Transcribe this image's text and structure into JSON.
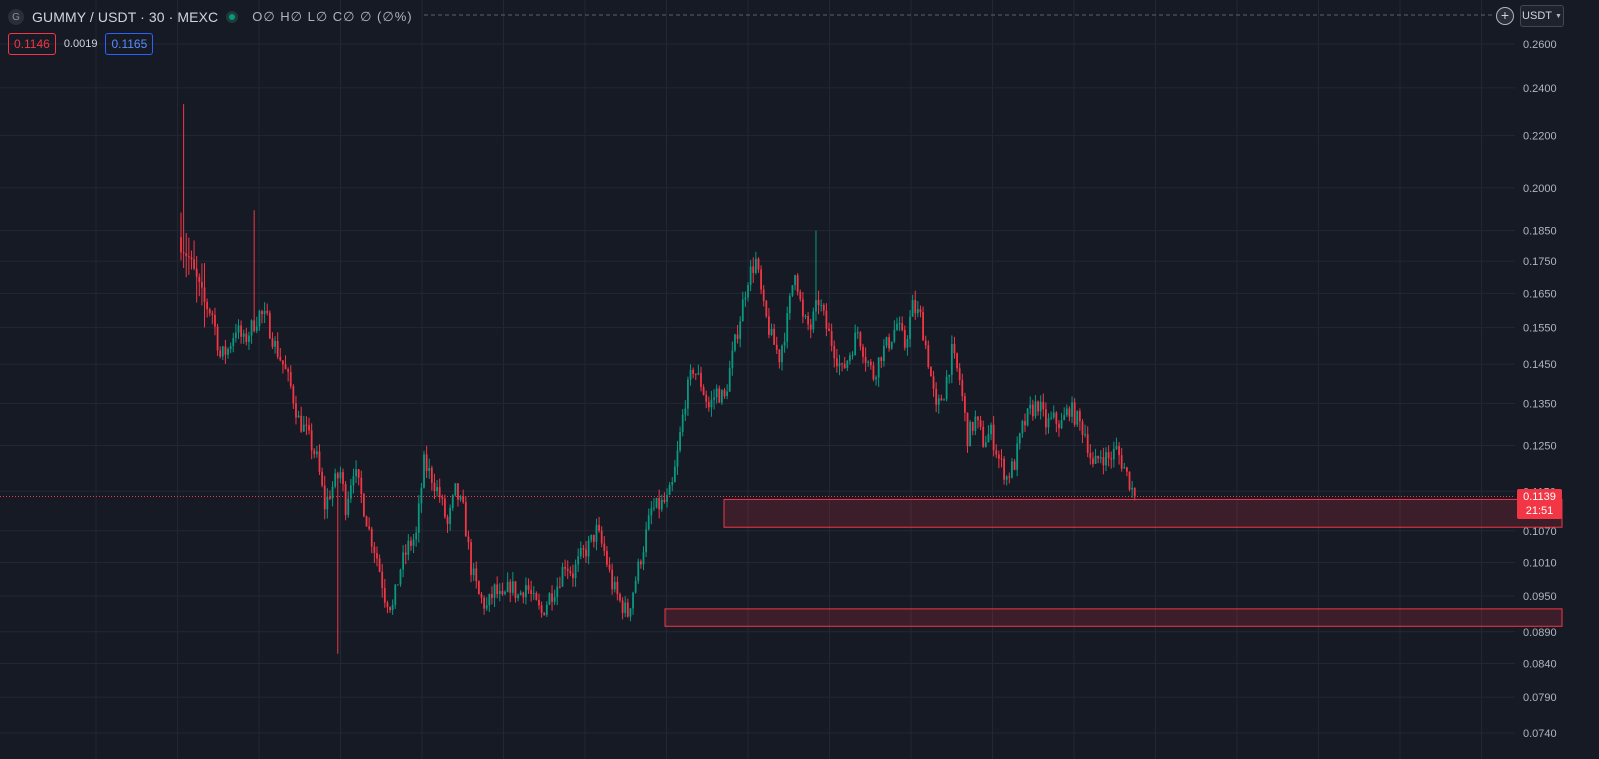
{
  "header": {
    "symbol_logo": "G",
    "symbol": "GUMMY / USDT · 30 · MEXC",
    "ohlc": "O∅ H∅ L∅ C∅ ∅ (∅%)",
    "sell_price": "0.1146",
    "spread": "0.0019",
    "buy_price": "0.1165",
    "currency": "USDT",
    "add_icon": "plus-circle-icon",
    "dropdown_icon": "chevron-down-icon"
  },
  "last_price": {
    "price": "0.1139",
    "countdown": "21:51",
    "value": 0.1139
  },
  "colors": {
    "background": "#161a25",
    "grid": "#232734",
    "up": "#089981",
    "down": "#f23645",
    "axis_text": "#b2b5be"
  },
  "chart_data": {
    "type": "candlestick",
    "yscale": "log",
    "y_ticks": [
      "0.2600",
      "0.2400",
      "0.2200",
      "0.2000",
      "0.1850",
      "0.1750",
      "0.1650",
      "0.1550",
      "0.1450",
      "0.1350",
      "0.1250",
      "0.1150",
      "0.1070",
      "0.1010",
      "0.0950",
      "0.0890",
      "0.0840",
      "0.0790",
      "0.0740"
    ],
    "y_tick_values": [
      0.26,
      0.24,
      0.22,
      0.2,
      0.185,
      0.175,
      0.165,
      0.155,
      0.145,
      0.135,
      0.125,
      0.115,
      0.107,
      0.101,
      0.095,
      0.089,
      0.084,
      0.079,
      0.074
    ],
    "zones": [
      {
        "top": 0.1133,
        "bottom": 0.1077
      },
      {
        "top": 0.0928,
        "bottom": 0.0899
      }
    ],
    "path_anchors": [
      [
        0,
        0.181
      ],
      [
        3,
        0.176
      ],
      [
        6,
        0.169
      ],
      [
        9,
        0.162
      ],
      [
        12,
        0.159
      ],
      [
        15,
        0.147
      ],
      [
        18,
        0.149
      ],
      [
        21,
        0.155
      ],
      [
        24,
        0.151
      ],
      [
        27,
        0.155
      ],
      [
        30,
        0.159
      ],
      [
        33,
        0.157
      ],
      [
        36,
        0.15
      ],
      [
        39,
        0.145
      ],
      [
        42,
        0.139
      ],
      [
        45,
        0.131
      ],
      [
        48,
        0.128
      ],
      [
        52,
        0.122
      ],
      [
        55,
        0.112
      ],
      [
        58,
        0.116
      ],
      [
        61,
        0.119
      ],
      [
        63,
        0.112
      ],
      [
        66,
        0.12
      ],
      [
        69,
        0.114
      ],
      [
        72,
        0.107
      ],
      [
        75,
        0.102
      ],
      [
        78,
        0.095
      ],
      [
        81,
        0.093
      ],
      [
        84,
        0.1
      ],
      [
        87,
        0.104
      ],
      [
        90,
        0.106
      ],
      [
        93,
        0.121
      ],
      [
        96,
        0.118
      ],
      [
        99,
        0.114
      ],
      [
        102,
        0.108
      ],
      [
        105,
        0.115
      ],
      [
        108,
        0.111
      ],
      [
        111,
        0.1
      ],
      [
        114,
        0.095
      ],
      [
        117,
        0.093
      ],
      [
        120,
        0.096
      ],
      [
        123,
        0.094
      ],
      [
        126,
        0.097
      ],
      [
        129,
        0.095
      ],
      [
        132,
        0.097
      ],
      [
        135,
        0.094
      ],
      [
        138,
        0.092
      ],
      [
        141,
        0.095
      ],
      [
        144,
        0.097
      ],
      [
        147,
        0.101
      ],
      [
        150,
        0.099
      ],
      [
        153,
        0.102
      ],
      [
        156,
        0.104
      ],
      [
        159,
        0.107
      ],
      [
        162,
        0.103
      ],
      [
        165,
        0.097
      ],
      [
        168,
        0.094
      ],
      [
        171,
        0.092
      ],
      [
        174,
        0.098
      ],
      [
        177,
        0.104
      ],
      [
        180,
        0.111
      ],
      [
        183,
        0.112
      ],
      [
        186,
        0.113
      ],
      [
        188,
        0.116
      ],
      [
        190,
        0.123
      ],
      [
        193,
        0.136
      ],
      [
        196,
        0.144
      ],
      [
        199,
        0.14
      ],
      [
        202,
        0.134
      ],
      [
        205,
        0.138
      ],
      [
        208,
        0.136
      ],
      [
        211,
        0.147
      ],
      [
        214,
        0.158
      ],
      [
        217,
        0.17
      ],
      [
        220,
        0.175
      ],
      [
        223,
        0.16
      ],
      [
        226,
        0.152
      ],
      [
        229,
        0.147
      ],
      [
        232,
        0.157
      ],
      [
        235,
        0.173
      ],
      [
        238,
        0.157
      ],
      [
        241,
        0.155
      ],
      [
        244,
        0.163
      ],
      [
        247,
        0.155
      ],
      [
        250,
        0.149
      ],
      [
        253,
        0.143
      ],
      [
        256,
        0.148
      ],
      [
        259,
        0.154
      ],
      [
        262,
        0.147
      ],
      [
        265,
        0.142
      ],
      [
        268,
        0.148
      ],
      [
        271,
        0.151
      ],
      [
        274,
        0.156
      ],
      [
        277,
        0.15
      ],
      [
        280,
        0.161
      ],
      [
        283,
        0.158
      ],
      [
        286,
        0.146
      ],
      [
        289,
        0.133
      ],
      [
        292,
        0.138
      ],
      [
        295,
        0.148
      ],
      [
        298,
        0.141
      ],
      [
        301,
        0.127
      ],
      [
        304,
        0.131
      ],
      [
        307,
        0.126
      ],
      [
        310,
        0.128
      ],
      [
        313,
        0.122
      ],
      [
        316,
        0.118
      ],
      [
        319,
        0.121
      ],
      [
        322,
        0.129
      ],
      [
        325,
        0.133
      ],
      [
        328,
        0.135
      ],
      [
        331,
        0.13
      ],
      [
        334,
        0.131
      ],
      [
        337,
        0.13
      ],
      [
        340,
        0.134
      ],
      [
        343,
        0.131
      ],
      [
        346,
        0.128
      ],
      [
        349,
        0.12
      ],
      [
        352,
        0.123
      ],
      [
        355,
        0.122
      ],
      [
        358,
        0.124
      ],
      [
        361,
        0.12
      ],
      [
        363,
        0.117
      ],
      [
        365,
        0.1139
      ]
    ]
  }
}
